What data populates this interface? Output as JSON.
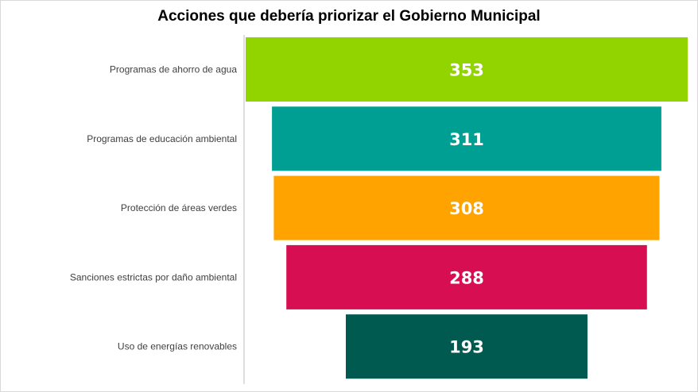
{
  "chart_data": {
    "type": "bar",
    "subtype": "funnel",
    "title": "Acciones que debería priorizar el Gobierno Municipal",
    "categories": [
      "Programas de ahorro de agua",
      "Programas de educación ambiental",
      "Protección de áreas verdes",
      "Sanciones estrictas por daño ambiental",
      "Uso de energías renovables"
    ],
    "values": [
      353,
      311,
      308,
      288,
      193
    ],
    "colors": [
      "#92d400",
      "#009f94",
      "#ffa300",
      "#d80e53",
      "#005a4f"
    ],
    "value_label_color": "#ffffff",
    "axis_line": true,
    "grid": false,
    "legend": "none"
  }
}
